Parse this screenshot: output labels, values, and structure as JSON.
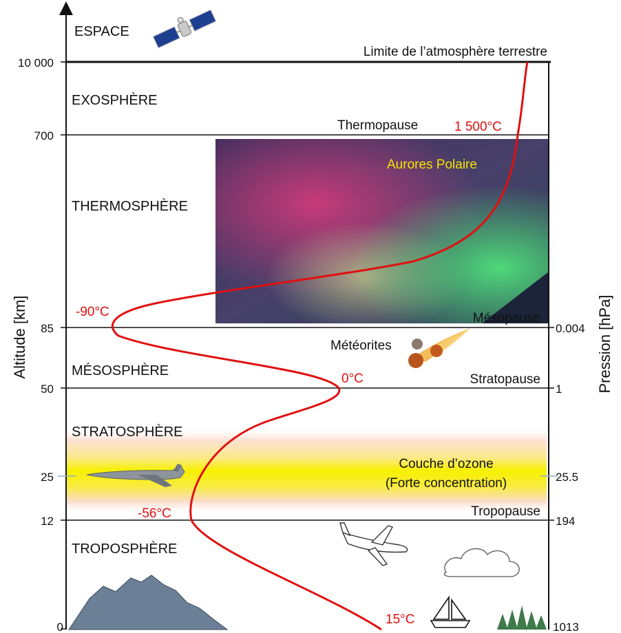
{
  "space_label": "ESPACE",
  "atmosphere_limit_label": "Limite de l’atmosphère terrestre",
  "layers": {
    "exosphere": "EXOSPHÈRE",
    "thermosphere": "THERMOSPHÈRE",
    "mesosphere": "MÉSOSPHÈRE",
    "stratosphere": "STRATOSPHÈRE",
    "troposphere": "TROPOSPHÈRE"
  },
  "boundaries": {
    "thermopause": "Thermopause",
    "mesopause": "Mésopause",
    "stratopause": "Stratopause",
    "tropopause": "Tropopause"
  },
  "temperatures": {
    "thermosphere_top": "1 500°C",
    "mesopause": "-90°C",
    "stratopause": "0°C",
    "tropopause": "-56°C",
    "surface": "15°C"
  },
  "axis": {
    "left_label": "Altitude [km]",
    "right_label": "Pression [hPa]",
    "altitude_ticks": [
      "10 000",
      "700",
      "85",
      "50",
      "25",
      "12",
      "0"
    ],
    "pressure_ticks": [
      "0.004",
      "1",
      "25.5",
      "194",
      "1013"
    ]
  },
  "annotations": {
    "aurora": "Aurores Polaire",
    "meteorites": "Météorites",
    "ozone_line1": "Couche d’ozone",
    "ozone_line2": "(Forte concentration)"
  },
  "icons": [
    "satellite-icon",
    "meteorite-icon",
    "jet-icon",
    "airliner-icon",
    "cloud-icon",
    "sailboat-icon",
    "mountain-icon",
    "trees-icon"
  ],
  "colors": {
    "temperature_curve": "#e01010",
    "ozone_band": "#f5f000",
    "aurora_text": "#f5e400"
  }
}
